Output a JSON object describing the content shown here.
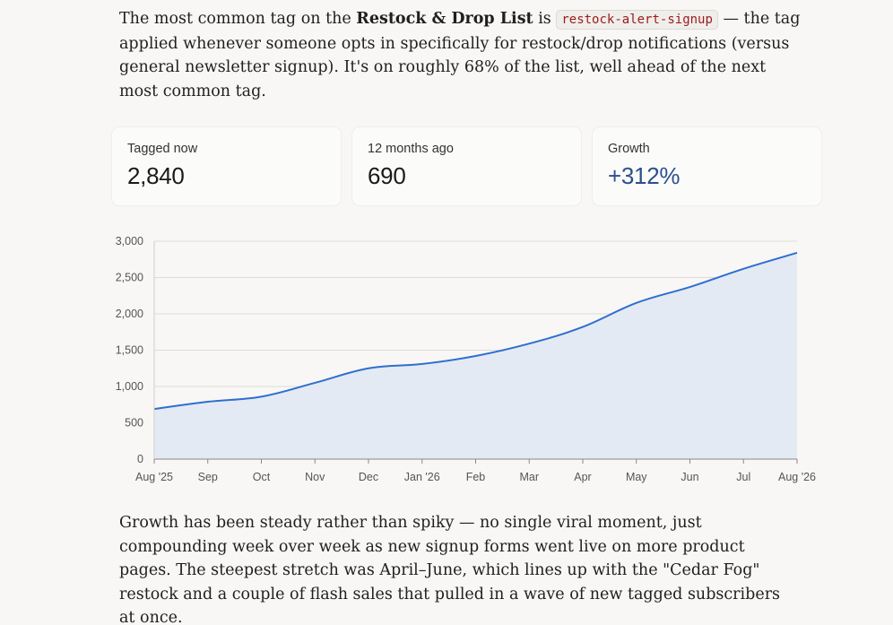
{
  "intro": {
    "part1": "The most common tag on the ",
    "list_name": "Restock & Drop List",
    "part2": " is ",
    "tag": "restock-alert-signup",
    "part3": " — the tag applied whenever someone opts in specifically for restock/drop notifications (versus general newsletter signup). It's on roughly 68% of the list, well ahead of the next most common tag."
  },
  "stats": [
    {
      "label": "Tagged now",
      "value": "2,840"
    },
    {
      "label": "12 months ago",
      "value": "690"
    },
    {
      "label": "Growth",
      "value": "+312%"
    }
  ],
  "colors": {
    "accent": "#2c4f8c",
    "line": "#2f6fd0",
    "area": "#e4eaf3",
    "tag_text": "#9b1c1c"
  },
  "chart_data": {
    "type": "area",
    "x": [
      "Aug '25",
      "Sep",
      "Oct",
      "Nov",
      "Dec",
      "Jan '26",
      "Feb",
      "Mar",
      "Apr",
      "May",
      "Jun",
      "Jul",
      "Aug '26"
    ],
    "values": [
      690,
      790,
      860,
      1050,
      1250,
      1310,
      1420,
      1590,
      1820,
      2150,
      2370,
      2620,
      2840
    ],
    "ylim": [
      0,
      3000
    ],
    "yticks": [
      0,
      500,
      1000,
      1500,
      2000,
      2500,
      3000
    ],
    "ytick_labels": [
      "0",
      "500",
      "1,000",
      "1,500",
      "2,000",
      "2,500",
      "3,000"
    ],
    "grid": true,
    "title": "",
    "xlabel": "",
    "ylabel": ""
  },
  "outro": {
    "text": "Growth has been steady rather than spiky — no single viral moment, just compounding week over week as new signup forms went live on more product pages. The steepest stretch was April–June, which lines up with the \"Cedar Fog\" restock and a couple of flash sales that pulled in a wave of new tagged subscribers at once."
  }
}
